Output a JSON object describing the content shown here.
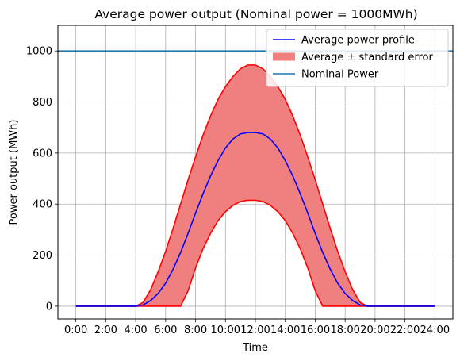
{
  "chart_data": {
    "type": "line",
    "title": "Average power output (Nominal power = 1000MWh)",
    "xlabel": "Time",
    "ylabel": "Power output (MWh)",
    "xlim": [
      -1.2,
      25.2
    ],
    "ylim": [
      -50,
      1100
    ],
    "x_ticks": [
      0,
      2,
      4,
      6,
      8,
      10,
      12,
      14,
      16,
      18,
      20,
      22,
      24
    ],
    "x_tick_labels": [
      "0:00",
      "2:00",
      "4:00",
      "6:00",
      "8:00",
      "10:00",
      "12:00",
      "14:00",
      "16:00",
      "18:00",
      "20:00",
      "22:00",
      "24:00"
    ],
    "y_ticks": [
      0,
      200,
      400,
      600,
      800,
      1000
    ],
    "y_tick_labels": [
      "0",
      "200",
      "400",
      "600",
      "800",
      "1000"
    ],
    "grid": true,
    "legend_position": "top-right",
    "x": [
      0,
      1,
      2,
      3,
      4,
      4.5,
      5,
      5.5,
      6,
      6.5,
      7,
      7.5,
      8,
      8.5,
      9,
      9.5,
      10,
      10.5,
      11,
      11.5,
      12,
      12.5,
      13,
      13.5,
      14,
      14.5,
      15,
      15.5,
      16,
      16.5,
      17,
      17.5,
      18,
      18.5,
      19,
      19.5,
      20,
      21,
      22,
      23,
      24
    ],
    "series": [
      {
        "name": "Average power profile",
        "color": "#0000ff",
        "values": [
          0,
          0,
          0,
          0,
          0,
          5,
          22,
          50,
          90,
          145,
          210,
          285,
          365,
          440,
          510,
          570,
          620,
          655,
          675,
          680,
          680,
          675,
          655,
          620,
          570,
          510,
          440,
          365,
          285,
          210,
          145,
          90,
          50,
          22,
          5,
          0,
          0,
          0,
          0,
          0,
          0
        ]
      },
      {
        "name": "Average ± standard error",
        "color": "#f08080",
        "edge_color": "#ff0000",
        "type": "band",
        "upper": [
          0,
          0,
          0,
          0,
          0,
          15,
          65,
          135,
          215,
          305,
          400,
          495,
          585,
          670,
          745,
          810,
          860,
          900,
          930,
          945,
          945,
          930,
          900,
          860,
          810,
          745,
          670,
          585,
          495,
          400,
          305,
          215,
          135,
          65,
          15,
          0,
          0,
          0,
          0,
          0,
          0
        ],
        "lower": [
          0,
          0,
          0,
          0,
          0,
          0,
          0,
          0,
          0,
          0,
          0,
          60,
          150,
          225,
          285,
          335,
          370,
          395,
          410,
          415,
          415,
          410,
          395,
          370,
          335,
          285,
          225,
          150,
          60,
          0,
          0,
          0,
          0,
          0,
          0,
          0,
          0,
          0,
          0,
          0,
          0
        ]
      },
      {
        "name": "Nominal Power",
        "color": "#1f77b4",
        "type": "hline",
        "value": 1000
      }
    ]
  }
}
